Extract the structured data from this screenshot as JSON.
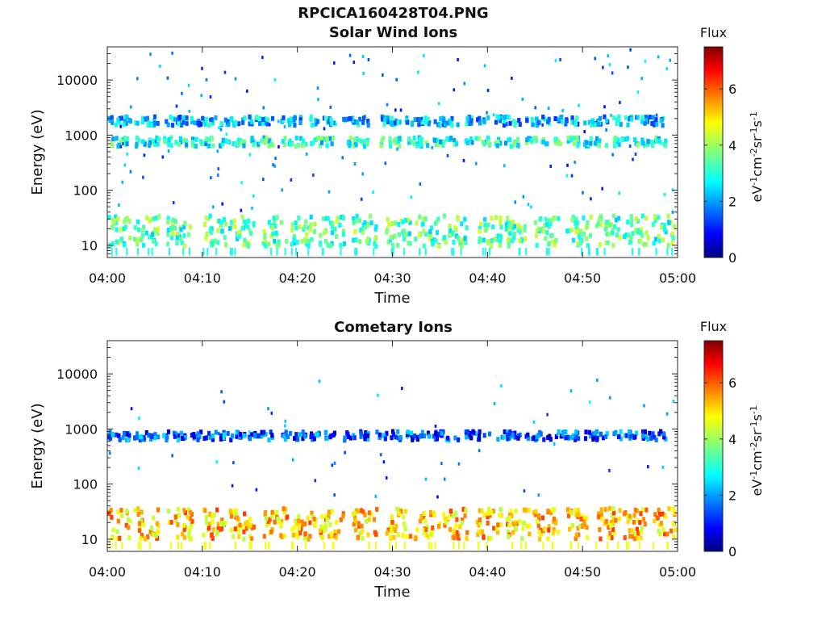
{
  "figure": {
    "file_title": "RPCICA160428T04.PNG"
  },
  "chart_data": [
    {
      "type": "heatmap",
      "title": "Solar Wind Ions",
      "xlabel": "Time",
      "ylabel": "Energy (eV)",
      "x_ticks": [
        "04:00",
        "04:10",
        "04:20",
        "04:30",
        "04:40",
        "04:50",
        "05:00"
      ],
      "y_ticks": [
        "10",
        "100",
        "1000",
        "10000"
      ],
      "y_scale": "log",
      "xlim": [
        "04:00",
        "05:00"
      ],
      "ylim": [
        6,
        40000
      ],
      "colorbar": {
        "label": "Flux",
        "unit": "eV-1cm-2sr-1s-1",
        "range": [
          0,
          7.5
        ],
        "ticks": [
          "0",
          "2",
          "4",
          "6"
        ],
        "colormap": "jet"
      },
      "clusters": [
        {
          "energy_eV": 750,
          "flux": 3.0,
          "times_min": [
            1,
            4,
            7,
            10,
            13,
            16,
            19.5,
            22.5,
            26,
            29.5,
            32.5,
            35.5,
            38.8,
            42,
            45.2,
            48.2,
            51.2,
            54.4,
            57.3
          ]
        },
        {
          "energy_eV": 1800,
          "flux": 2.2,
          "times_min": [
            1,
            4,
            7,
            10,
            13,
            16,
            19.5,
            22.5,
            26,
            29.5,
            32.5,
            35.5,
            38.8,
            42,
            45.2,
            48.2,
            51.2,
            54.4,
            57.3
          ]
        },
        {
          "energy_eV": 18,
          "flux": 3.4,
          "times_min": [
            1,
            4,
            7.5,
            11,
            14,
            17.5,
            20.5,
            23.5,
            27,
            30.5,
            33.5,
            36.5,
            40,
            43,
            46,
            49.5,
            52.5,
            55.5,
            58.5
          ]
        }
      ]
    },
    {
      "type": "heatmap",
      "title": "Cometary Ions",
      "xlabel": "Time",
      "ylabel": "Energy (eV)",
      "x_ticks": [
        "04:00",
        "04:10",
        "04:20",
        "04:30",
        "04:40",
        "04:50",
        "05:00"
      ],
      "y_ticks": [
        "10",
        "100",
        "1000",
        "10000"
      ],
      "y_scale": "log",
      "xlim": [
        "04:00",
        "05:00"
      ],
      "ylim": [
        6,
        40000
      ],
      "colorbar": {
        "label": "Flux",
        "unit": "eV-1cm-2sr-1s-1",
        "range": [
          0,
          7.5
        ],
        "ticks": [
          "0",
          "2",
          "4",
          "6"
        ],
        "colormap": "jet"
      },
      "clusters": [
        {
          "energy_eV": 750,
          "flux": 1.4,
          "times_min": [
            1,
            4,
            7,
            10,
            13,
            16,
            19.5,
            22.5,
            26,
            29.5,
            32.5,
            35.5,
            38.8,
            42,
            45.2,
            48.2,
            51.2,
            54.4,
            57.3
          ]
        },
        {
          "energy_eV": 19,
          "flux": 5.2,
          "times_min": [
            1,
            4,
            7.5,
            11,
            14,
            17.5,
            20.5,
            23.5,
            27,
            30.5,
            33.5,
            36.5,
            40,
            43,
            46,
            49.5,
            52.5,
            55.5,
            58.5
          ]
        }
      ]
    }
  ]
}
